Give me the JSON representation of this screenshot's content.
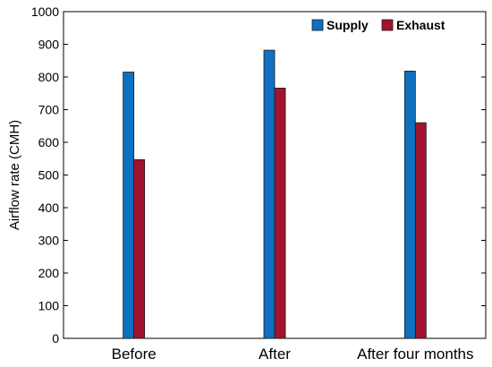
{
  "chart_data": {
    "type": "bar",
    "title": "",
    "xlabel": "",
    "ylabel": "Airflow rate (CMH)",
    "ylim": [
      0,
      1000
    ],
    "yticks": [
      "0",
      "100",
      "200",
      "300",
      "400",
      "500",
      "600",
      "700",
      "800",
      "900",
      "1000"
    ],
    "categories": [
      "Before",
      "After",
      "After four months"
    ],
    "series": [
      {
        "name": "Supply",
        "values": [
          815,
          882,
          818
        ],
        "color": "#0e70c0"
      },
      {
        "name": "Exhaust",
        "values": [
          547,
          766,
          660
        ],
        "color": "#a3122e"
      }
    ],
    "grid": false,
    "legend": "top-right"
  }
}
